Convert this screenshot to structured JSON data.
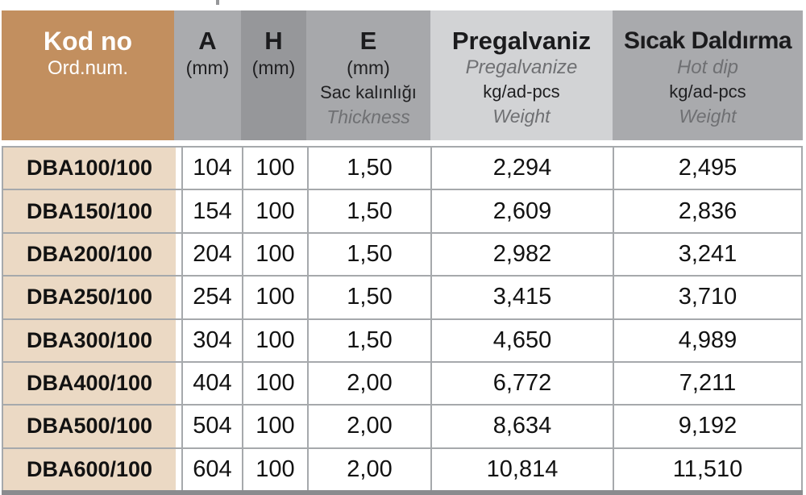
{
  "colors": {
    "header_code_bg": "#C28F5F",
    "header_a_bg": "#AAABAE",
    "header_h_bg": "#96979A",
    "header_e_bg": "#A7A8AB",
    "header_pregalvaniz_bg": "#D2D3D5",
    "header_hot_dip_bg": "#A9AAAD",
    "code_cell_bg": "#EBD9C4",
    "grid_line": "#A6A9AC",
    "bottom_bar": "#8A8B8E",
    "muted_italic_text": "#6F7073",
    "header_code_text": "#FFFFFF",
    "body_text": "#121212"
  },
  "table": {
    "columns": [
      {
        "title": "Kod no",
        "subtitle": "Ord.num."
      },
      {
        "title": "A",
        "unit": "(mm)"
      },
      {
        "title": "H",
        "unit": "(mm)"
      },
      {
        "title": "E",
        "unit": "(mm)",
        "line3": "Sac kalınlığı",
        "line4": "Thickness"
      },
      {
        "title": "Pregalvaniz",
        "subtitle": "Pregalvanize",
        "line3": "kg/ad-pcs",
        "line4": "Weight"
      },
      {
        "title": "Sıcak Daldırma",
        "subtitle": "Hot dip",
        "line3": "kg/ad-pcs",
        "line4": "Weight"
      }
    ],
    "rows": [
      [
        "DBA100/100",
        "104",
        "100",
        "1,50",
        "2,294",
        "2,495"
      ],
      [
        "DBA150/100",
        "154",
        "100",
        "1,50",
        "2,609",
        "2,836"
      ],
      [
        "DBA200/100",
        "204",
        "100",
        "1,50",
        "2,982",
        "3,241"
      ],
      [
        "DBA250/100",
        "254",
        "100",
        "1,50",
        "3,415",
        "3,710"
      ],
      [
        "DBA300/100",
        "304",
        "100",
        "1,50",
        "4,650",
        "4,989"
      ],
      [
        "DBA400/100",
        "404",
        "100",
        "2,00",
        "6,772",
        "7,211"
      ],
      [
        "DBA500/100",
        "504",
        "100",
        "2,00",
        "8,634",
        "9,192"
      ],
      [
        "DBA600/100",
        "604",
        "100",
        "2,00",
        "10,814",
        "11,510"
      ]
    ]
  }
}
